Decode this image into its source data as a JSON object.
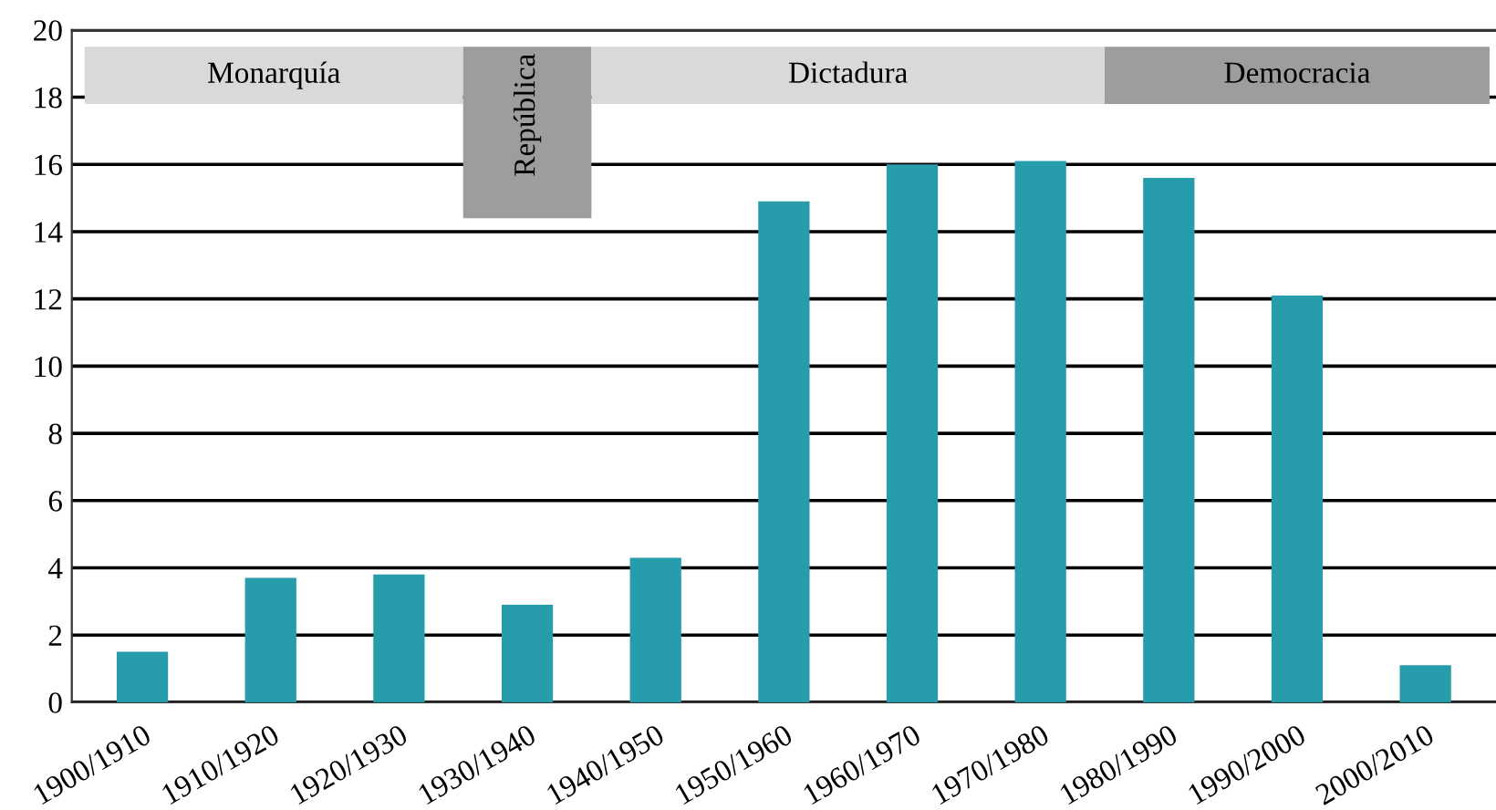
{
  "chart_data": {
    "type": "bar",
    "categories": [
      "1900/1910",
      "1910/1920",
      "1920/1930",
      "1930/1940",
      "1940/1950",
      "1950/1960",
      "1960/1970",
      "1970/1980",
      "1980/1990",
      "1990/2000",
      "2000/2010"
    ],
    "values": [
      1.5,
      3.7,
      3.8,
      2.9,
      4.3,
      14.9,
      16.0,
      16.1,
      15.6,
      12.1,
      1.1
    ],
    "color": "#279dab",
    "ylim": [
      0,
      20
    ],
    "yticks": [
      0,
      2,
      4,
      6,
      8,
      10,
      12,
      14,
      16,
      18,
      20
    ],
    "grid": "y",
    "bands": [
      {
        "axis": "x",
        "from": "1900/1910",
        "to": "1920/1930",
        "label": "Monarquía",
        "color": "#d9d9d9"
      },
      {
        "axis": "x",
        "from": "1930/1940",
        "to": "1930/1940",
        "label": "República",
        "color": "#9d9d9d"
      },
      {
        "axis": "x",
        "from": "1940/1950",
        "to": "1970/1980",
        "label": "Dictadura",
        "color": "#d9d9d9"
      },
      {
        "axis": "x",
        "from": "1980/1990",
        "to": "2000/2010",
        "label": "Democracia",
        "color": "#9d9d9d"
      }
    ]
  }
}
